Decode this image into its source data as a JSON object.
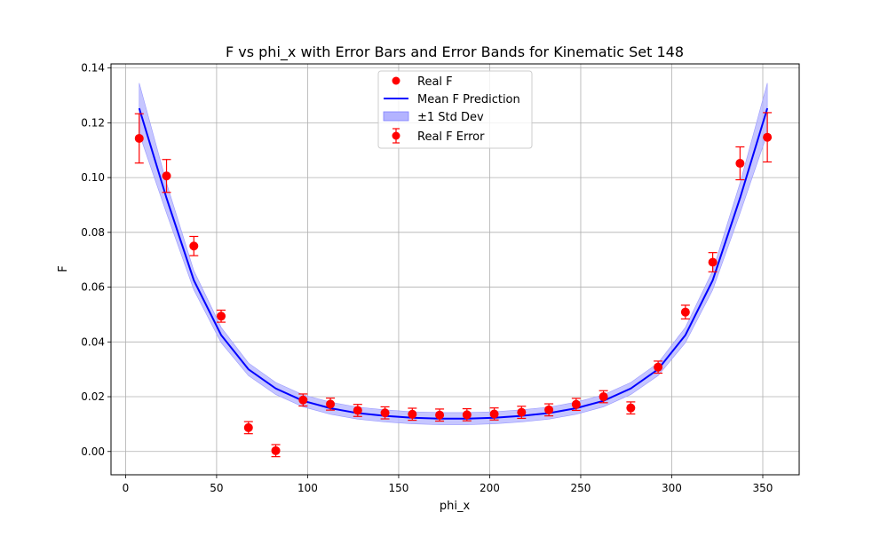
{
  "chart_data": {
    "type": "scatter",
    "title": "F vs phi_x with Error Bars and Error Bands for Kinematic Set 148",
    "xlabel": "phi_x",
    "ylabel": "F",
    "xlim": [
      -8,
      370
    ],
    "ylim": [
      -0.0085,
      0.1415
    ],
    "x_ticks": [
      0,
      50,
      100,
      150,
      200,
      250,
      300,
      350
    ],
    "y_ticks": [
      0.0,
      0.02,
      0.04,
      0.06,
      0.08,
      0.1,
      0.12,
      0.14
    ],
    "grid": true,
    "legend_position": "upper center",
    "legend": [
      "Real F",
      "Mean F Prediction",
      "±1 Std Dev",
      "Real F Error"
    ],
    "colors": {
      "points": "#ff0000",
      "line": "#0000ff",
      "band": "#b3b3ff"
    },
    "x": [
      7.5,
      22.5,
      37.5,
      52.5,
      67.5,
      82.5,
      97.5,
      112.5,
      127.5,
      142.5,
      157.5,
      172.5,
      187.5,
      202.5,
      217.5,
      232.5,
      247.5,
      262.5,
      277.5,
      292.5,
      307.5,
      322.5,
      337.5,
      352.5
    ],
    "series": [
      {
        "name": "Real F",
        "kind": "errorbar",
        "y": [
          0.1143,
          0.1006,
          0.075,
          0.0494,
          0.0087,
          0.0003,
          0.0188,
          0.0173,
          0.015,
          0.0141,
          0.0136,
          0.0133,
          0.0134,
          0.0137,
          0.0143,
          0.0152,
          0.0172,
          0.02,
          0.0159,
          0.0308,
          0.0509,
          0.0691,
          0.1052,
          0.1147
        ],
        "yerr": [
          0.009,
          0.006,
          0.0035,
          0.0022,
          0.0022,
          0.0022,
          0.0022,
          0.0022,
          0.0022,
          0.0022,
          0.0022,
          0.0022,
          0.0022,
          0.0022,
          0.0022,
          0.0022,
          0.0022,
          0.0022,
          0.0022,
          0.0022,
          0.0025,
          0.0035,
          0.006,
          0.009
        ]
      },
      {
        "name": "Mean F Prediction",
        "kind": "line",
        "y": [
          0.1253,
          0.0925,
          0.0625,
          0.0425,
          0.03,
          0.023,
          0.0185,
          0.0158,
          0.014,
          0.013,
          0.0123,
          0.012,
          0.012,
          0.0123,
          0.013,
          0.014,
          0.0158,
          0.0185,
          0.023,
          0.03,
          0.0425,
          0.0625,
          0.0925,
          0.1253
        ],
        "std": [
          0.0092,
          0.0055,
          0.0035,
          0.0028,
          0.0023,
          0.0022,
          0.0022,
          0.0022,
          0.0022,
          0.0022,
          0.0022,
          0.0022,
          0.0022,
          0.0022,
          0.0022,
          0.0022,
          0.0022,
          0.0022,
          0.0022,
          0.0023,
          0.0028,
          0.0035,
          0.0055,
          0.0092
        ]
      }
    ]
  }
}
